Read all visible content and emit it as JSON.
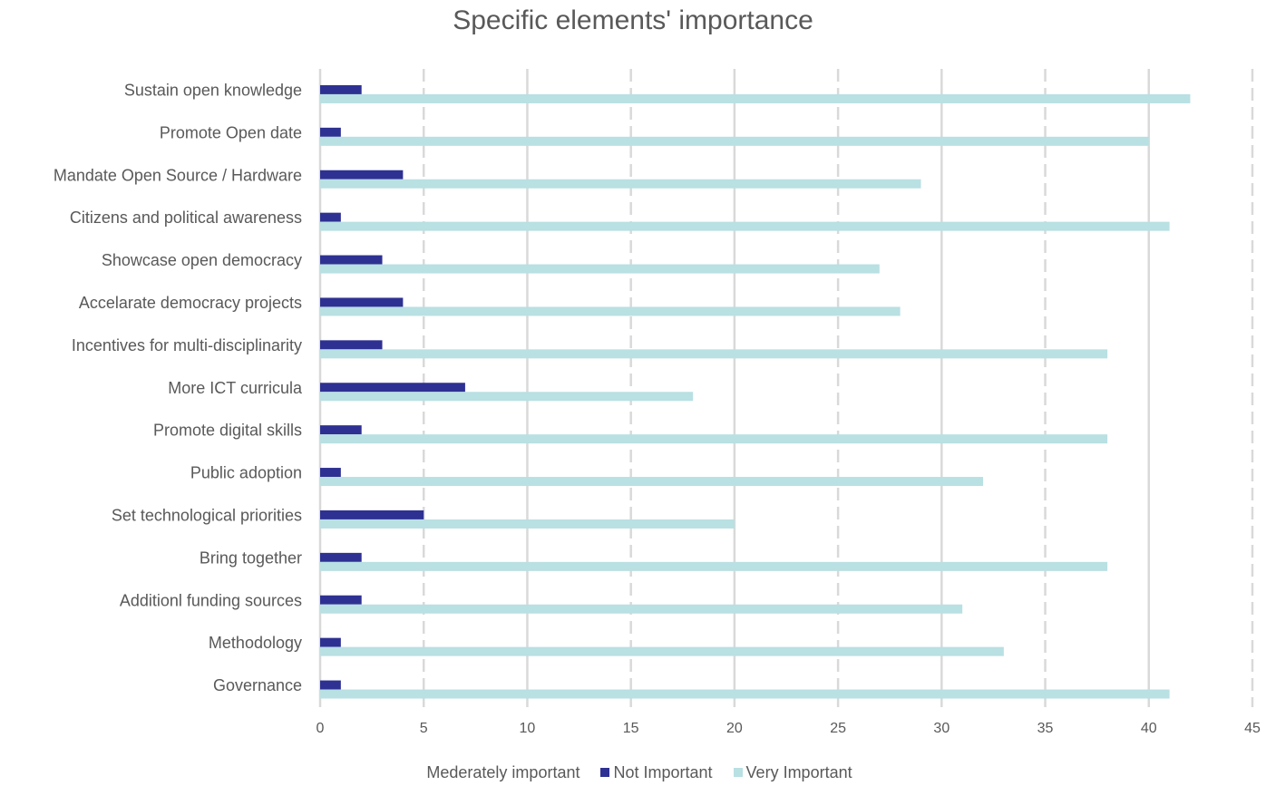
{
  "chart_data": {
    "type": "bar",
    "orientation": "horizontal",
    "title": "Specific elements' importance",
    "categories": [
      "Sustain open  knowledge",
      "Promote Open date",
      "Mandate  Open Source / Hardware",
      "Citizens and  political awareness",
      "Showcase  open democracy",
      "Accelarate democracy projects",
      "Incentives  for multi-disciplinarity",
      "More ICT curricula",
      "Promote digital skills",
      "Public adoption",
      "Set technological  priorities",
      "Bring together",
      "Additionl  funding sources",
      "Methodology",
      "Governance"
    ],
    "series": [
      {
        "name": "Mederately  important",
        "color": "#ffffff",
        "values": [
          0,
          0,
          0,
          0,
          0,
          0,
          0,
          0,
          0,
          0,
          0,
          0,
          0,
          0,
          0
        ]
      },
      {
        "name": "Not Important",
        "color": "#2E3192",
        "values": [
          2,
          1,
          4,
          1,
          3,
          4,
          3,
          7,
          2,
          1,
          5,
          2,
          2,
          1,
          1
        ]
      },
      {
        "name": "Very Important",
        "color": "#B9E0E3",
        "values": [
          42,
          40,
          29,
          41,
          27,
          28,
          38,
          18,
          38,
          32,
          20,
          38,
          31,
          33,
          41
        ]
      }
    ],
    "xlim": [
      0,
      45
    ],
    "xticks": [
      0,
      5,
      10,
      15,
      20,
      25,
      30,
      35,
      40,
      45
    ],
    "grid": "vertical dashed",
    "legend_position": "bottom"
  }
}
